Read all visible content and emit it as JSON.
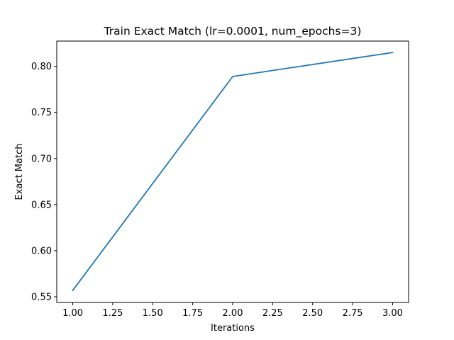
{
  "chart_data": {
    "type": "line",
    "title": "Train Exact Match (lr=0.0001, num_epochs=3)",
    "xlabel": "Iterations",
    "ylabel": "Exact Match",
    "xlim": [
      0.9,
      3.1
    ],
    "ylim": [
      0.5439,
      0.8274
    ],
    "x_ticks": [
      1.0,
      1.25,
      1.5,
      1.75,
      2.0,
      2.25,
      2.5,
      2.75,
      3.0
    ],
    "x_tick_labels": [
      "1.00",
      "1.25",
      "1.50",
      "1.75",
      "2.00",
      "2.25",
      "2.50",
      "2.75",
      "3.00"
    ],
    "y_ticks": [
      0.55,
      0.6,
      0.65,
      0.7,
      0.75,
      0.8
    ],
    "y_tick_labels": [
      "0.55",
      "0.60",
      "0.65",
      "0.70",
      "0.75",
      "0.80"
    ],
    "grid": false,
    "legend": "none",
    "series": [
      {
        "x": [
          1,
          2,
          3
        ],
        "values": [
          0.557,
          0.789,
          0.815
        ],
        "color": "#1f77b4"
      }
    ]
  }
}
